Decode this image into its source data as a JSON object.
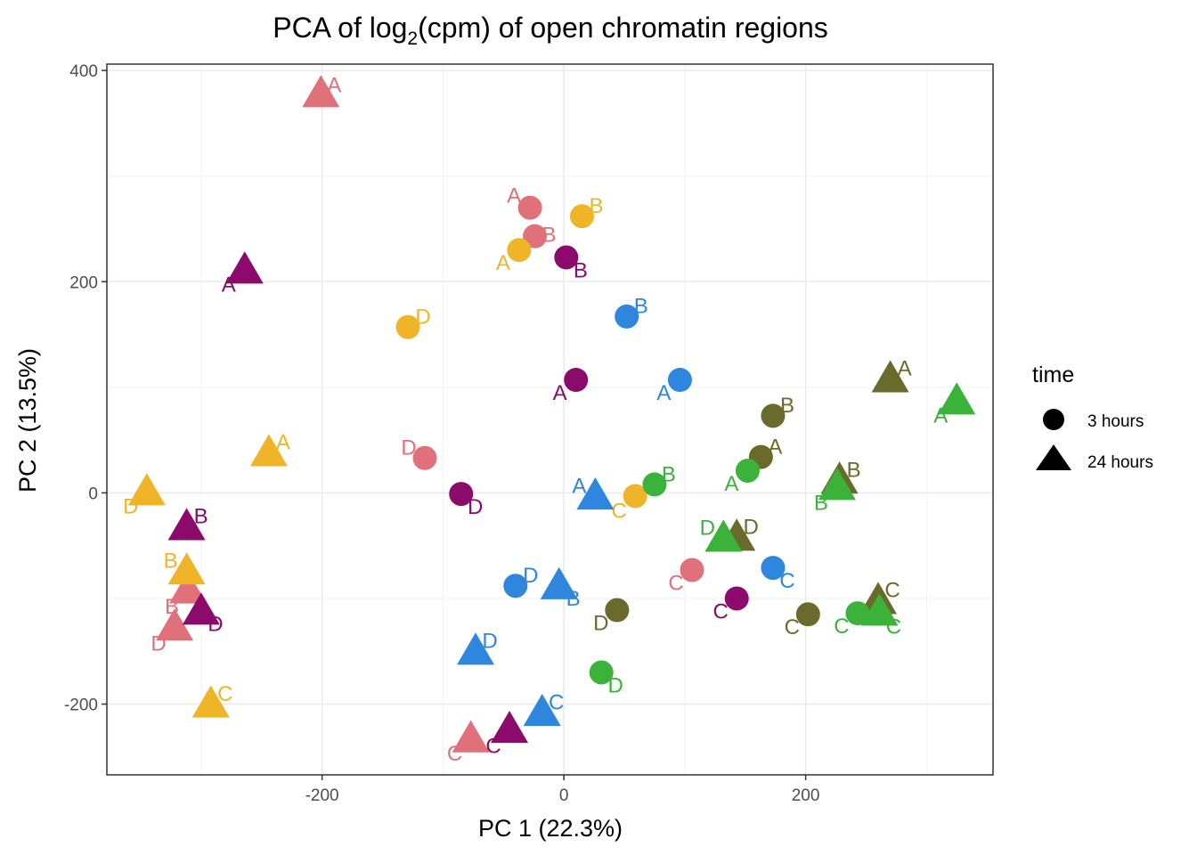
{
  "chart_data": {
    "type": "scatter",
    "title": {
      "before": "PCA of log",
      "sub": "2",
      "after": "(cpm) of open chromatin regions"
    },
    "xlabel": "PC 1 (22.3%)",
    "ylabel": "PC 2 (13.5%)",
    "xlim": [
      -378,
      355
    ],
    "ylim": [
      -267,
      406
    ],
    "xticks": [
      -200,
      0,
      200
    ],
    "yticks": [
      -200,
      0,
      200,
      400
    ],
    "grid": true,
    "legend": {
      "title": "time",
      "position": "right",
      "items": [
        {
          "label": "3 hours",
          "shape": "circle"
        },
        {
          "label": "24 hours",
          "shape": "triangle"
        }
      ]
    },
    "colors": {
      "pink": "#E0707A",
      "orange": "#F0B429",
      "purple": "#8B0A6C",
      "blue": "#2E86DE",
      "olive": "#6B6A2D",
      "green": "#3BB33B"
    },
    "points": [
      {
        "x": -201,
        "y": 378,
        "color": "pink",
        "shape": "triangle",
        "label": "A",
        "lx": 15,
        "ly": -8
      },
      {
        "x": -28,
        "y": 270,
        "color": "pink",
        "shape": "circle",
        "label": "A",
        "lx": -18,
        "ly": -12
      },
      {
        "x": -24,
        "y": 243,
        "color": "pink",
        "shape": "circle",
        "label": "B",
        "lx": 16,
        "ly": 0
      },
      {
        "x": -115,
        "y": 33,
        "color": "pink",
        "shape": "circle",
        "label": "D",
        "lx": -18,
        "ly": -10
      },
      {
        "x": -311,
        "y": -92,
        "color": "pink",
        "shape": "triangle",
        "label": "B",
        "lx": -18,
        "ly": 20
      },
      {
        "x": -322,
        "y": -127,
        "color": "pink",
        "shape": "triangle",
        "label": "D",
        "lx": -18,
        "ly": 20
      },
      {
        "x": -77,
        "y": -233,
        "color": "pink",
        "shape": "triangle",
        "label": "C",
        "lx": -18,
        "ly": 18
      },
      {
        "x": 106,
        "y": -73,
        "color": "pink",
        "shape": "circle",
        "label": "C",
        "lx": -18,
        "ly": 16
      },
      {
        "x": 15,
        "y": 262,
        "color": "orange",
        "shape": "circle",
        "label": "B",
        "lx": 16,
        "ly": -10
      },
      {
        "x": -37,
        "y": 230,
        "color": "orange",
        "shape": "circle",
        "label": "A",
        "lx": -18,
        "ly": 16
      },
      {
        "x": -129,
        "y": 157,
        "color": "orange",
        "shape": "circle",
        "label": "D",
        "lx": 17,
        "ly": -10
      },
      {
        "x": -244,
        "y": 38,
        "color": "orange",
        "shape": "triangle",
        "label": "A",
        "lx": 16,
        "ly": -10
      },
      {
        "x": -345,
        "y": 1,
        "color": "orange",
        "shape": "triangle",
        "label": "D",
        "lx": -18,
        "ly": 18
      },
      {
        "x": -312,
        "y": -74,
        "color": "orange",
        "shape": "triangle",
        "label": "B",
        "lx": -18,
        "ly": -10
      },
      {
        "x": -292,
        "y": -200,
        "color": "orange",
        "shape": "triangle",
        "label": "C",
        "lx": 16,
        "ly": -10
      },
      {
        "x": 59,
        "y": -3,
        "color": "orange",
        "shape": "circle",
        "label": "C",
        "lx": -18,
        "ly": 18
      },
      {
        "x": 2,
        "y": 223,
        "color": "purple",
        "shape": "circle",
        "label": "B",
        "lx": 16,
        "ly": 16
      },
      {
        "x": -264,
        "y": 211,
        "color": "purple",
        "shape": "triangle",
        "label": "A",
        "lx": -18,
        "ly": 18
      },
      {
        "x": 10,
        "y": 107,
        "color": "purple",
        "shape": "circle",
        "label": "A",
        "lx": -18,
        "ly": 16
      },
      {
        "x": -85,
        "y": -1,
        "color": "purple",
        "shape": "circle",
        "label": "D",
        "lx": 16,
        "ly": 16
      },
      {
        "x": -312,
        "y": -32,
        "color": "purple",
        "shape": "triangle",
        "label": "B",
        "lx": 16,
        "ly": -10
      },
      {
        "x": -300,
        "y": -112,
        "color": "purple",
        "shape": "triangle",
        "label": "D",
        "lx": 16,
        "ly": 16
      },
      {
        "x": -45,
        "y": -224,
        "color": "purple",
        "shape": "triangle",
        "label": "C",
        "lx": -18,
        "ly": 20
      },
      {
        "x": 143,
        "y": -100,
        "color": "purple",
        "shape": "circle",
        "label": "C",
        "lx": -18,
        "ly": 16
      },
      {
        "x": 52,
        "y": 167,
        "color": "blue",
        "shape": "circle",
        "label": "B",
        "lx": 16,
        "ly": -10
      },
      {
        "x": 96,
        "y": 107,
        "color": "blue",
        "shape": "circle",
        "label": "A",
        "lx": -18,
        "ly": 16
      },
      {
        "x": 26,
        "y": -3,
        "color": "blue",
        "shape": "triangle",
        "label": "A",
        "lx": -18,
        "ly": -10
      },
      {
        "x": -40,
        "y": -88,
        "color": "blue",
        "shape": "circle",
        "label": "D",
        "lx": 17,
        "ly": -10
      },
      {
        "x": -4,
        "y": -88,
        "color": "blue",
        "shape": "triangle",
        "label": "B",
        "lx": 16,
        "ly": 16
      },
      {
        "x": -73,
        "y": -150,
        "color": "blue",
        "shape": "triangle",
        "label": "D",
        "lx": 16,
        "ly": -10
      },
      {
        "x": -18,
        "y": -208,
        "color": "blue",
        "shape": "triangle",
        "label": "C",
        "lx": 16,
        "ly": -10
      },
      {
        "x": 173,
        "y": -71,
        "color": "blue",
        "shape": "circle",
        "label": "C",
        "lx": 16,
        "ly": 16
      },
      {
        "x": 173,
        "y": 73,
        "color": "olive",
        "shape": "circle",
        "label": "B",
        "lx": 16,
        "ly": -10
      },
      {
        "x": 163,
        "y": 34,
        "color": "olive",
        "shape": "circle",
        "label": "A",
        "lx": 16,
        "ly": -10
      },
      {
        "x": 270,
        "y": 108,
        "color": "olive",
        "shape": "triangle",
        "label": "A",
        "lx": 16,
        "ly": -10
      },
      {
        "x": 228,
        "y": 12,
        "color": "olive",
        "shape": "triangle",
        "label": "B",
        "lx": 16,
        "ly": -10
      },
      {
        "x": 143,
        "y": -42,
        "color": "olive",
        "shape": "triangle",
        "label": "D",
        "lx": 16,
        "ly": -10
      },
      {
        "x": 44,
        "y": -111,
        "color": "olive",
        "shape": "circle",
        "label": "D",
        "lx": -18,
        "ly": 16
      },
      {
        "x": 202,
        "y": -115,
        "color": "olive",
        "shape": "circle",
        "label": "C",
        "lx": -18,
        "ly": 16
      },
      {
        "x": 260,
        "y": -102,
        "color": "olive",
        "shape": "triangle",
        "label": "C",
        "lx": 16,
        "ly": -10
      },
      {
        "x": 75,
        "y": 8,
        "color": "green",
        "shape": "circle",
        "label": "B",
        "lx": 16,
        "ly": -10
      },
      {
        "x": 152,
        "y": 21,
        "color": "green",
        "shape": "circle",
        "label": "A",
        "lx": -18,
        "ly": 16
      },
      {
        "x": 325,
        "y": 87,
        "color": "green",
        "shape": "triangle",
        "label": "A",
        "lx": -18,
        "ly": 18
      },
      {
        "x": 226,
        "y": 6,
        "color": "green",
        "shape": "triangle",
        "label": "B",
        "lx": -18,
        "ly": 20
      },
      {
        "x": 132,
        "y": -43,
        "color": "green",
        "shape": "triangle",
        "label": "D",
        "lx": -18,
        "ly": -10
      },
      {
        "x": 243,
        "y": -114,
        "color": "green",
        "shape": "circle",
        "label": "C",
        "lx": -18,
        "ly": 16
      },
      {
        "x": 261,
        "y": -113,
        "color": "green",
        "shape": "triangle",
        "label": "C",
        "lx": 16,
        "ly": 18
      },
      {
        "x": 31,
        "y": -170,
        "color": "green",
        "shape": "circle",
        "label": "D",
        "lx": 16,
        "ly": 16
      }
    ]
  }
}
